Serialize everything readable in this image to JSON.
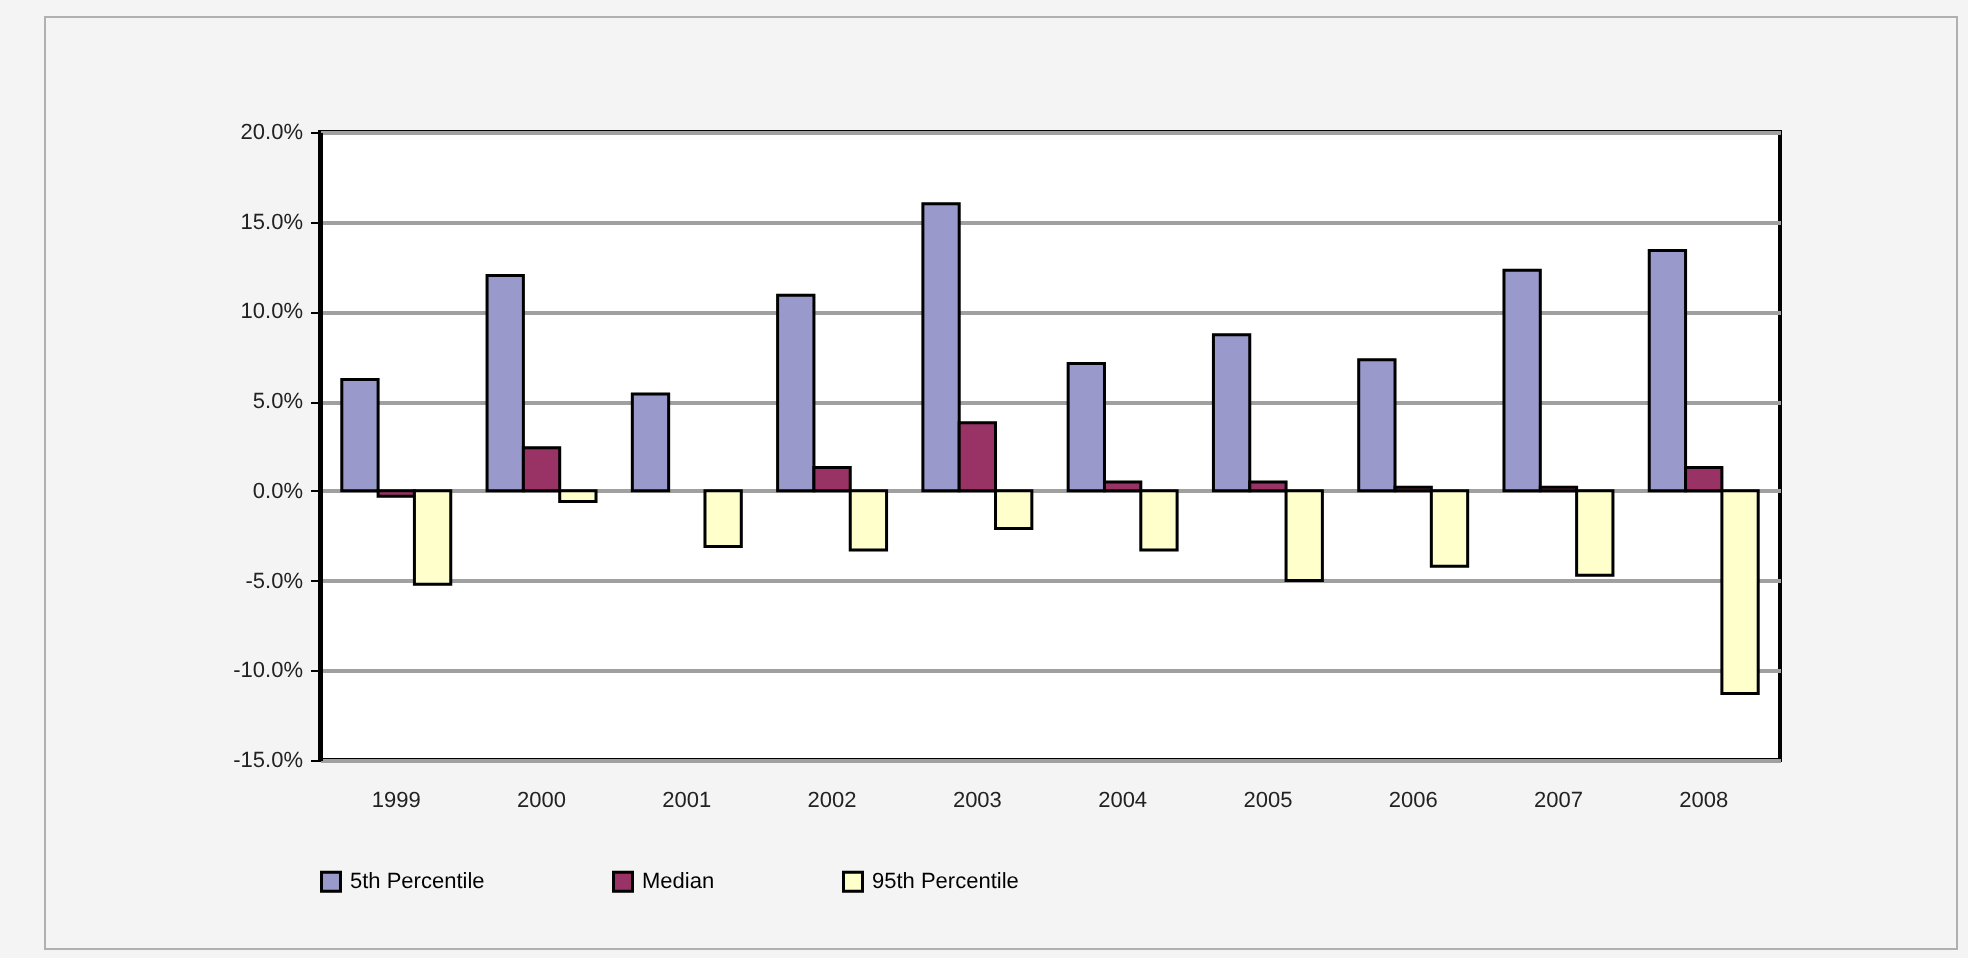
{
  "chart_data": {
    "type": "bar",
    "categories": [
      "1999",
      "2000",
      "2001",
      "2002",
      "2003",
      "2004",
      "2005",
      "2006",
      "2007",
      "2008"
    ],
    "series": [
      {
        "name": "5th Percentile",
        "color": "#9999cc",
        "values": [
          6.2,
          12.0,
          5.4,
          10.9,
          16.0,
          7.1,
          8.7,
          7.3,
          12.3,
          13.4
        ]
      },
      {
        "name": "Median",
        "color": "#993366",
        "values": [
          -0.3,
          2.4,
          null,
          1.3,
          3.8,
          0.5,
          0.5,
          0.2,
          0.2,
          1.3
        ]
      },
      {
        "name": "95th Percentile",
        "color": "#ffffcc",
        "values": [
          -5.2,
          -0.6,
          -3.1,
          -3.3,
          -2.1,
          -3.3,
          -5.0,
          -4.2,
          -4.7,
          -11.3
        ]
      }
    ],
    "ylim": [
      -15,
      20
    ],
    "yticks": [
      {
        "value": -15,
        "label": "-15.0%"
      },
      {
        "value": -10,
        "label": "-10.0%"
      },
      {
        "value": -5,
        "label": "-5.0%"
      },
      {
        "value": 0,
        "label": "0.0%"
      },
      {
        "value": 5,
        "label": "5.0%"
      },
      {
        "value": 10,
        "label": "10.0%"
      },
      {
        "value": 15,
        "label": "15.0%"
      },
      {
        "value": 20,
        "label": "20.0%"
      }
    ],
    "grid": "y",
    "legend": "bottom"
  }
}
